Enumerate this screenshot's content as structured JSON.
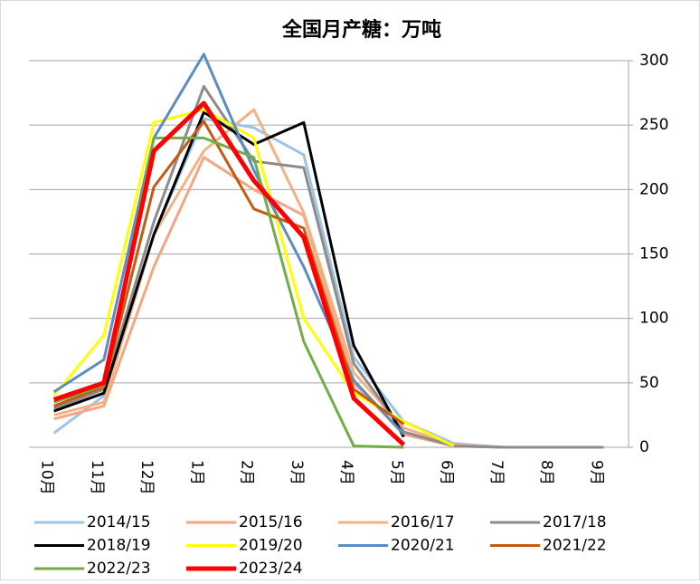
{
  "chart_data": {
    "type": "line",
    "title": "全国月产糖：万吨",
    "categories": [
      "10月",
      "11月",
      "12月",
      "1月",
      "2月",
      "3月",
      "4月",
      "5月",
      "6月",
      "7月",
      "8月",
      "9月"
    ],
    "ylim": [
      0,
      300
    ],
    "yticks": [
      0,
      50,
      100,
      150,
      200,
      250,
      300
    ],
    "grid": true,
    "y_axis_side": "right",
    "legend": "bottom",
    "series": [
      {
        "name": "2014/15",
        "color": "#9dc3e6",
        "values": [
          11,
          40,
          165,
          255,
          248,
          227,
          70,
          20,
          3,
          0,
          0,
          0
        ]
      },
      {
        "name": "2015/16",
        "color": "#f4a582",
        "values": [
          22,
          32,
          140,
          225,
          200,
          180,
          50,
          10,
          1,
          0,
          0,
          0
        ]
      },
      {
        "name": "2016/17",
        "color": "#f4b183",
        "values": [
          25,
          35,
          165,
          230,
          262,
          182,
          58,
          15,
          2,
          0,
          0,
          0
        ]
      },
      {
        "name": "2017/18",
        "color": "#8c8c8c",
        "values": [
          30,
          45,
          175,
          280,
          222,
          217,
          65,
          12,
          1,
          0,
          0,
          0
        ]
      },
      {
        "name": "2018/19",
        "color": "#000000",
        "values": [
          28,
          42,
          165,
          260,
          235,
          252,
          79,
          8,
          null,
          null,
          null,
          null
        ]
      },
      {
        "name": "2019/20",
        "color": "#ffff00",
        "values": [
          40,
          87,
          252,
          262,
          240,
          100,
          42,
          20,
          1,
          null,
          null,
          null
        ]
      },
      {
        "name": "2020/21",
        "color": "#5b8cc2",
        "values": [
          43,
          68,
          240,
          305,
          215,
          140,
          52,
          10,
          null,
          null,
          null,
          null
        ]
      },
      {
        "name": "2021/22",
        "color": "#c55a11",
        "values": [
          32,
          47,
          202,
          253,
          185,
          170,
          45,
          18,
          null,
          null,
          null,
          null
        ]
      },
      {
        "name": "2022/23",
        "color": "#70ad47",
        "values": [
          35,
          48,
          240,
          240,
          225,
          82,
          1,
          0,
          null,
          null,
          null,
          null
        ]
      },
      {
        "name": "2023/24",
        "color": "#ff0000",
        "values": [
          37,
          50,
          230,
          267,
          207,
          163,
          38,
          2,
          null,
          null,
          null,
          null
        ]
      }
    ]
  }
}
